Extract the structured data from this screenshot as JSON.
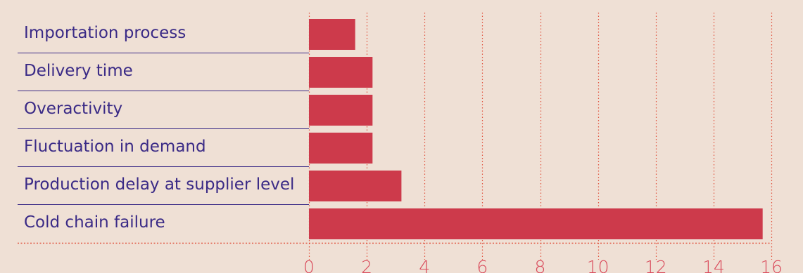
{
  "chart_data": {
    "type": "bar",
    "orientation": "horizontal",
    "categories": [
      "Importation process",
      "Delivery time",
      "Overactivity",
      "Fluctuation in demand",
      "Production delay at supplier level",
      "Cold chain failure"
    ],
    "values": [
      1.6,
      2.2,
      2.2,
      2.2,
      3.2,
      15.7
    ],
    "xlim": [
      0,
      16
    ],
    "xticks": [
      "0",
      "2",
      "4",
      "6",
      "8",
      "10",
      "12",
      "14",
      "16"
    ],
    "grid": "vertical-dotted",
    "title": "",
    "xlabel": "",
    "ylabel": "",
    "colors": {
      "bar": "#cd3a4b",
      "category_text": "#3a2a86",
      "row_divider": "#3a2a86",
      "grid": "#e0523d",
      "tick_text": "#d9495a",
      "background": "#efe0d5"
    }
  }
}
